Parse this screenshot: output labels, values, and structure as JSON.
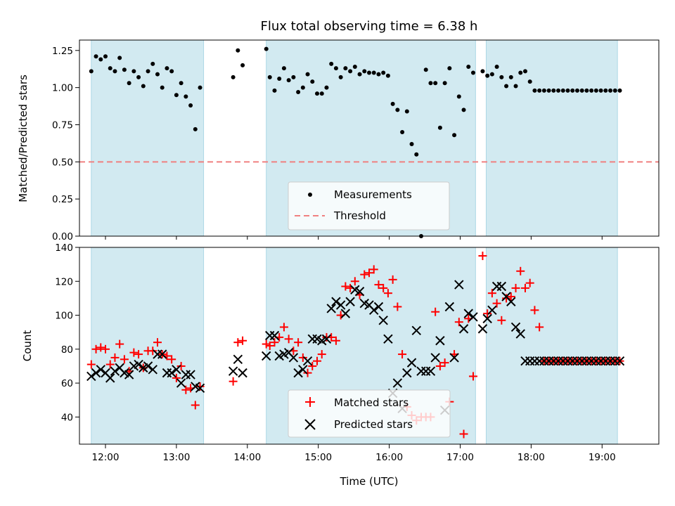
{
  "chart_data": [
    {
      "type": "scatter",
      "title": "Flux total observing time = 6.38 h",
      "xlabel": "",
      "ylabel": "Matched/Predicted stars",
      "xlim": [
        "11:38",
        "19:48"
      ],
      "ylim": [
        0,
        1.32
      ],
      "yticks": [
        "0.00",
        "0.25",
        "0.50",
        "0.75",
        "1.00",
        "1.25"
      ],
      "threshold": 0.5,
      "threshold_color": "#f08080",
      "marker_color": "#000000",
      "shade_color": "#add8e6",
      "shaded_intervals": [
        [
          "11:48",
          "13:23"
        ],
        [
          "14:16",
          "17:13"
        ],
        [
          "17:22",
          "19:13"
        ]
      ],
      "legend": [
        "Measurements",
        "Threshold"
      ],
      "legend_position": "lower center",
      "series": [
        {
          "name": "Measurements",
          "x": [
            "11:48",
            "11:52",
            "11:56",
            "12:00",
            "12:04",
            "12:08",
            "12:12",
            "12:16",
            "12:20",
            "12:24",
            "12:28",
            "12:32",
            "12:36",
            "12:40",
            "12:44",
            "12:48",
            "12:52",
            "12:56",
            "13:00",
            "13:04",
            "13:08",
            "13:12",
            "13:16",
            "13:20",
            "13:48",
            "13:52",
            "13:56",
            "14:16",
            "14:19",
            "14:23",
            "14:27",
            "14:31",
            "14:35",
            "14:39",
            "14:43",
            "14:47",
            "14:51",
            "14:55",
            "14:59",
            "15:03",
            "15:07",
            "15:11",
            "15:15",
            "15:19",
            "15:23",
            "15:27",
            "15:31",
            "15:35",
            "15:39",
            "15:43",
            "15:47",
            "15:51",
            "15:55",
            "15:59",
            "16:03",
            "16:07",
            "16:11",
            "16:15",
            "16:19",
            "16:23",
            "16:27",
            "16:31",
            "16:35",
            "16:39",
            "16:43",
            "16:47",
            "16:51",
            "16:55",
            "16:59",
            "17:03",
            "17:07",
            "17:11",
            "17:19",
            "17:23",
            "17:27",
            "17:31",
            "17:35",
            "17:39",
            "17:43",
            "17:47",
            "17:51",
            "17:55",
            "17:59",
            "18:03",
            "18:07",
            "18:11",
            "18:15",
            "18:19",
            "18:23",
            "18:27",
            "18:31",
            "18:35",
            "18:39",
            "18:43",
            "18:47",
            "18:51",
            "18:55",
            "18:59",
            "19:03",
            "19:07",
            "19:11",
            "19:15"
          ],
          "y": [
            1.11,
            1.21,
            1.19,
            1.21,
            1.13,
            1.11,
            1.2,
            1.12,
            1.03,
            1.11,
            1.07,
            1.01,
            1.11,
            1.16,
            1.09,
            1.0,
            1.13,
            1.11,
            0.95,
            1.03,
            0.94,
            0.88,
            0.72,
            1.0,
            1.07,
            1.25,
            1.15,
            1.26,
            1.07,
            0.98,
            1.06,
            1.13,
            1.05,
            1.07,
            0.97,
            1.0,
            1.09,
            1.04,
            0.96,
            0.96,
            1.0,
            1.16,
            1.13,
            1.07,
            1.13,
            1.11,
            1.14,
            1.09,
            1.11,
            1.1,
            1.1,
            1.09,
            1.1,
            1.08,
            0.89,
            0.85,
            0.7,
            0.84,
            0.62,
            0.55,
            0.0,
            1.12,
            1.03,
            1.03,
            0.73,
            1.03,
            1.13,
            0.68,
            0.94,
            0.85,
            1.14,
            1.1,
            1.11,
            1.08,
            1.09,
            1.14,
            1.07,
            1.01,
            1.07,
            1.01,
            1.1,
            1.11,
            1.04,
            0.98,
            0.98,
            0.98,
            0.98,
            0.98,
            0.98,
            0.98,
            0.98,
            0.98,
            0.98,
            0.98,
            0.98,
            0.98,
            0.98,
            0.98,
            0.98,
            0.98,
            0.98,
            0.98
          ]
        }
      ]
    },
    {
      "type": "scatter",
      "title": "",
      "xlabel": "Time (UTC)",
      "ylabel": "Count",
      "xlim": [
        "11:38",
        "19:48"
      ],
      "ylim": [
        24,
        140
      ],
      "yticks": [
        "40",
        "60",
        "80",
        "100",
        "120",
        "140"
      ],
      "xticks": [
        "12:00",
        "13:00",
        "14:00",
        "15:00",
        "16:00",
        "17:00",
        "18:00",
        "19:00"
      ],
      "shade_color": "#add8e6",
      "shaded_intervals": [
        [
          "11:48",
          "13:23"
        ],
        [
          "14:16",
          "17:13"
        ],
        [
          "17:22",
          "19:13"
        ]
      ],
      "legend": [
        "Matched stars",
        "Predicted stars"
      ],
      "legend_position": "lower center",
      "series": [
        {
          "name": "Matched stars",
          "color": "#ff0000",
          "marker": "plus",
          "x": [
            "11:48",
            "11:52",
            "11:56",
            "12:00",
            "12:04",
            "12:08",
            "12:12",
            "12:16",
            "12:20",
            "12:24",
            "12:28",
            "12:32",
            "12:36",
            "12:40",
            "12:44",
            "12:48",
            "12:52",
            "12:56",
            "13:00",
            "13:04",
            "13:08",
            "13:12",
            "13:16",
            "13:20",
            "13:48",
            "13:52",
            "13:56",
            "14:16",
            "14:19",
            "14:23",
            "14:27",
            "14:31",
            "14:35",
            "14:39",
            "14:43",
            "14:47",
            "14:51",
            "14:55",
            "14:59",
            "15:03",
            "15:07",
            "15:11",
            "15:15",
            "15:19",
            "15:23",
            "15:27",
            "15:31",
            "15:35",
            "15:39",
            "15:43",
            "15:47",
            "15:51",
            "15:55",
            "15:59",
            "16:03",
            "16:07",
            "16:11",
            "16:15",
            "16:19",
            "16:23",
            "16:27",
            "16:31",
            "16:35",
            "16:39",
            "16:43",
            "16:47",
            "16:51",
            "16:55",
            "16:59",
            "17:03",
            "17:07",
            "17:11",
            "17:19",
            "17:23",
            "17:27",
            "17:31",
            "17:35",
            "17:39",
            "17:43",
            "17:47",
            "17:51",
            "17:55",
            "17:59",
            "18:03",
            "18:07",
            "18:11",
            "18:15",
            "18:19",
            "18:23",
            "18:27",
            "18:31",
            "18:35",
            "18:39",
            "18:43",
            "18:47",
            "18:51",
            "18:55",
            "18:59",
            "19:03",
            "19:07",
            "19:11",
            "19:15"
          ],
          "y": [
            71,
            80,
            81,
            80,
            71,
            75,
            83,
            74,
            67,
            78,
            77,
            69,
            79,
            79,
            84,
            77,
            76,
            74,
            63,
            70,
            56,
            57,
            47,
            58,
            61,
            84,
            85,
            83,
            82,
            84,
            87,
            93,
            86,
            79,
            84,
            75,
            66,
            70,
            73,
            77,
            87,
            87,
            85,
            100,
            117,
            116,
            120,
            112,
            124,
            125,
            127,
            118,
            116,
            113,
            121,
            105,
            77,
            46,
            41,
            38,
            40,
            40,
            40,
            102,
            70,
            72,
            49,
            77,
            96,
            30,
            98,
            64,
            135,
            101,
            113,
            107,
            97,
            110,
            111,
            116,
            126,
            116,
            119,
            103,
            93,
            73,
            73,
            73,
            73,
            73,
            73,
            73,
            73,
            73,
            73,
            73,
            73,
            73,
            73,
            73,
            73,
            73
          ]
        },
        {
          "name": "Predicted stars",
          "color": "#000000",
          "marker": "x",
          "x": [
            "11:48",
            "11:52",
            "11:56",
            "12:00",
            "12:04",
            "12:08",
            "12:12",
            "12:16",
            "12:20",
            "12:24",
            "12:28",
            "12:32",
            "12:36",
            "12:40",
            "12:44",
            "12:48",
            "12:52",
            "12:56",
            "13:00",
            "13:04",
            "13:08",
            "13:12",
            "13:16",
            "13:20",
            "13:48",
            "13:52",
            "13:56",
            "14:16",
            "14:19",
            "14:23",
            "14:27",
            "14:31",
            "14:35",
            "14:39",
            "14:43",
            "14:47",
            "14:51",
            "14:55",
            "14:59",
            "15:03",
            "15:07",
            "15:11",
            "15:15",
            "15:19",
            "15:23",
            "15:27",
            "15:31",
            "15:35",
            "15:39",
            "15:43",
            "15:47",
            "15:51",
            "15:55",
            "15:59",
            "16:03",
            "16:07",
            "16:11",
            "16:15",
            "16:19",
            "16:23",
            "16:27",
            "16:31",
            "16:35",
            "16:39",
            "16:43",
            "16:47",
            "16:51",
            "16:55",
            "16:59",
            "17:03",
            "17:07",
            "17:11",
            "17:19",
            "17:23",
            "17:27",
            "17:31",
            "17:35",
            "17:39",
            "17:43",
            "17:47",
            "17:51",
            "17:55",
            "17:59",
            "18:03",
            "18:07",
            "18:11",
            "18:15",
            "18:19",
            "18:23",
            "18:27",
            "18:31",
            "18:35",
            "18:39",
            "18:43",
            "18:47",
            "18:51",
            "18:55",
            "18:59",
            "19:03",
            "19:07",
            "19:11",
            "19:15"
          ],
          "y": [
            64,
            66,
            68,
            66,
            63,
            67,
            69,
            66,
            65,
            70,
            71,
            69,
            70,
            68,
            77,
            77,
            66,
            66,
            68,
            60,
            65,
            65,
            58,
            57,
            67,
            74,
            66,
            76,
            88,
            88,
            76,
            77,
            78,
            75,
            66,
            68,
            73,
            86,
            86,
            85,
            86,
            104,
            108,
            106,
            101,
            108,
            115,
            114,
            107,
            106,
            103,
            105,
            97,
            86,
            54,
            60,
            45,
            66,
            72,
            91,
            67,
            67,
            67,
            75,
            85,
            44,
            105,
            75,
            118,
            92,
            101,
            99,
            92,
            98,
            103,
            117,
            117,
            111,
            108,
            93,
            89,
            73,
            73,
            73,
            73,
            73,
            73,
            73,
            73,
            73,
            73,
            73,
            73,
            73,
            73,
            73,
            73,
            73,
            73,
            73,
            73,
            73
          ]
        }
      ]
    }
  ]
}
